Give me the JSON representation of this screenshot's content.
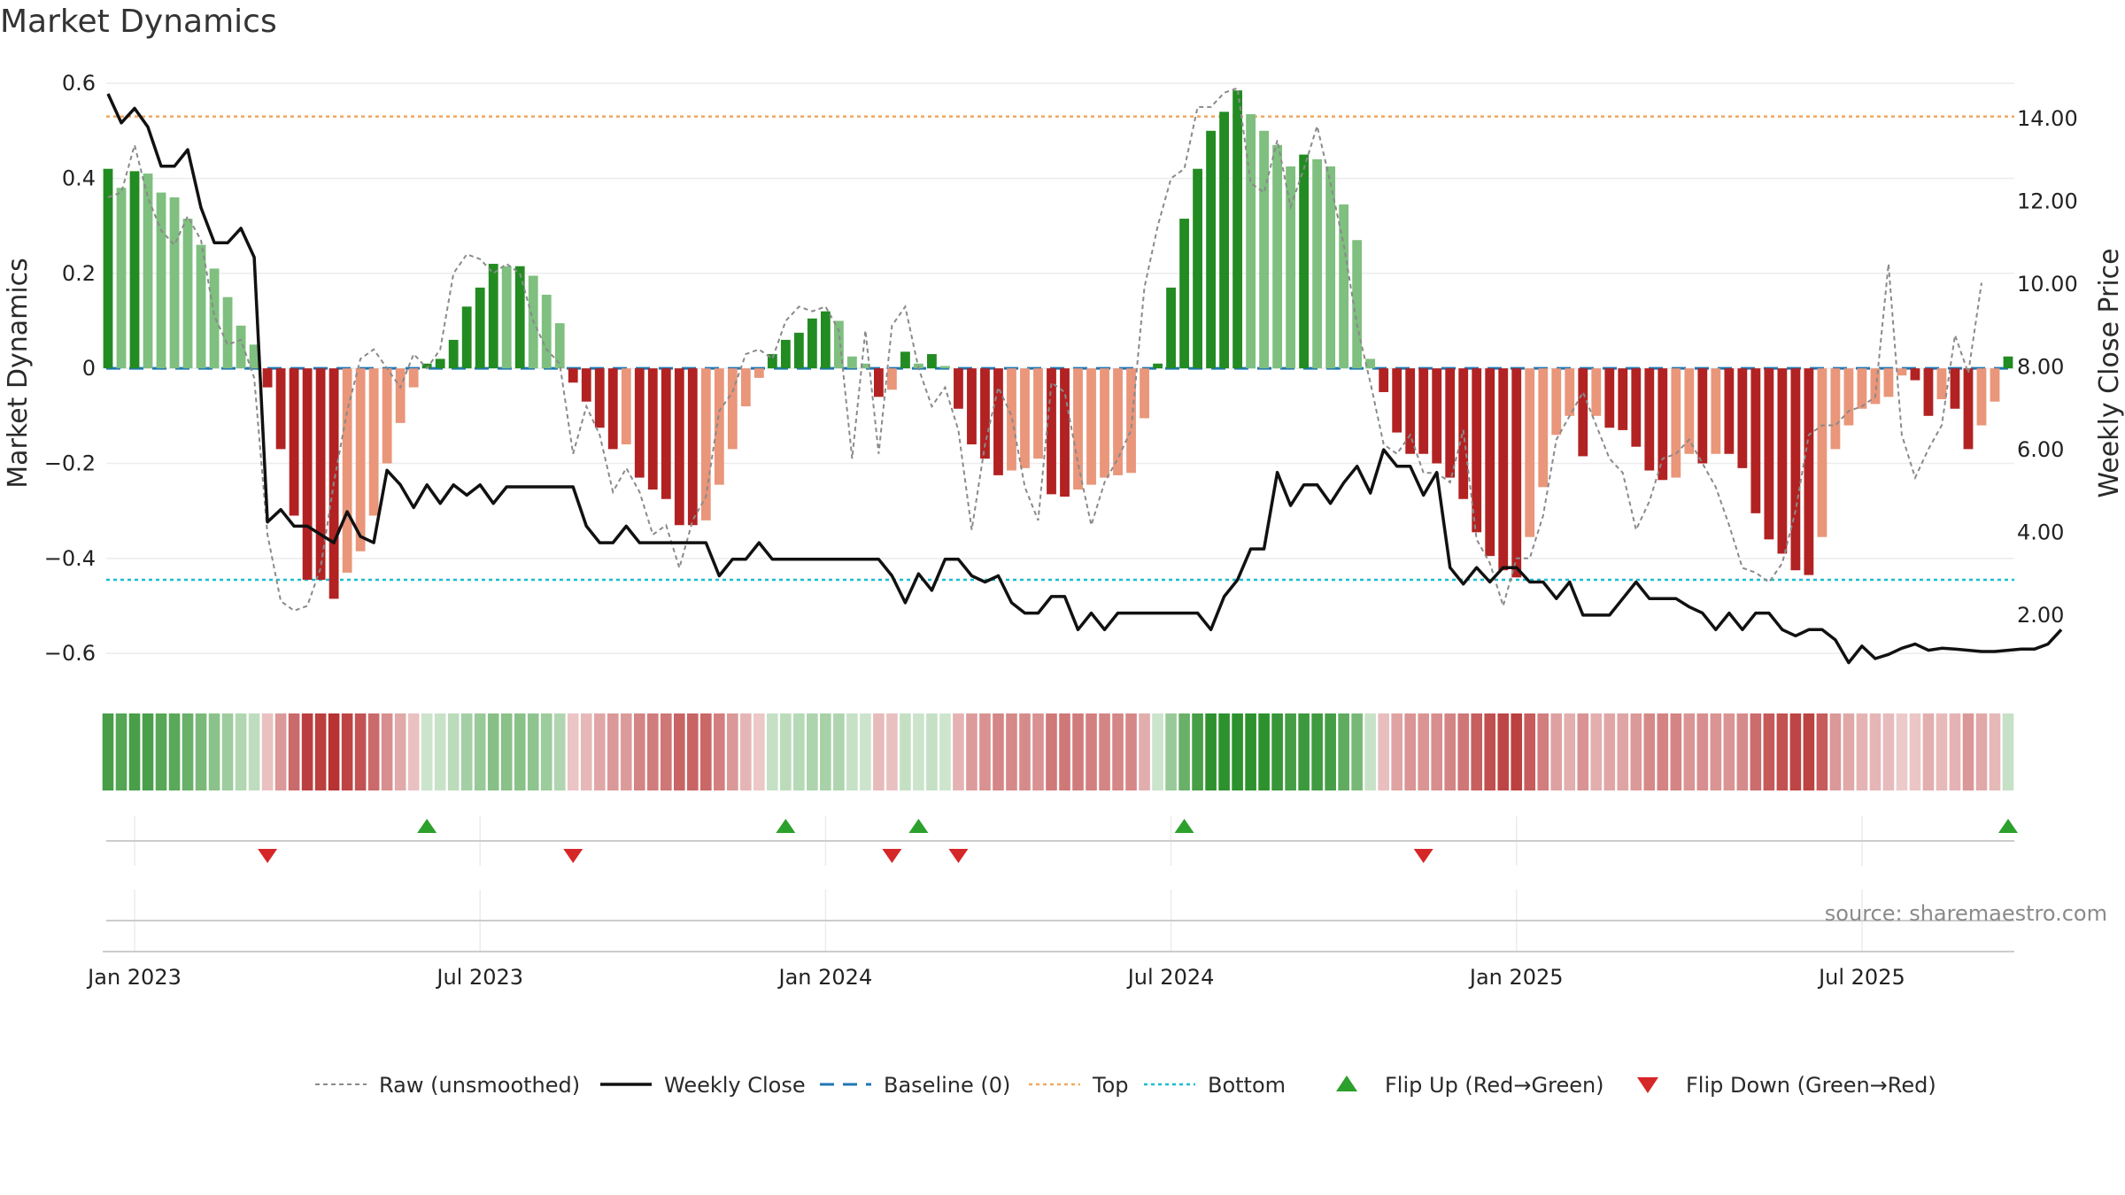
{
  "chart_data": {
    "type": "bar",
    "title": "Market Dynamics",
    "ylabel": "Market Dynamics",
    "y2label": "Weekly Close Price",
    "ylim": [
      -0.65,
      0.63
    ],
    "y2lim": [
      0.5,
      15.2
    ],
    "y_ticks": [
      {
        "v": 0.6,
        "label": "0.6"
      },
      {
        "v": 0.4,
        "label": "0.4"
      },
      {
        "v": 0.2,
        "label": "0.2"
      },
      {
        "v": 0,
        "label": "0"
      },
      {
        "v": -0.2,
        "label": "−0.2"
      },
      {
        "v": -0.4,
        "label": "−0.4"
      },
      {
        "v": -0.6,
        "label": "−0.6"
      }
    ],
    "y2_ticks": [
      {
        "v": 14,
        "label": "14.00"
      },
      {
        "v": 12,
        "label": "12.00"
      },
      {
        "v": 10,
        "label": "10.00"
      },
      {
        "v": 8,
        "label": "8.00"
      },
      {
        "v": 6,
        "label": "6.00"
      },
      {
        "v": 4,
        "label": "4.00"
      },
      {
        "v": 2,
        "label": "2.00"
      }
    ],
    "x_ticks": [
      {
        "w": 2,
        "label": "Jan 2023"
      },
      {
        "w": 28,
        "label": "Jul 2023"
      },
      {
        "w": 54,
        "label": "Jan 2024"
      },
      {
        "w": 80,
        "label": "Jul 2024"
      },
      {
        "w": 106,
        "label": "Jan 2025"
      },
      {
        "w": 132,
        "label": "Jul 2025"
      }
    ],
    "top_level": 0.53,
    "bottom_level": -0.445,
    "baseline": 0,
    "colors": {
      "strong_green": "#228b22",
      "light_green": "#7fbf7f",
      "strong_red": "#b22222",
      "light_red": "#e9967a",
      "raw": "#8a8a8a",
      "close": "#111111",
      "baseline": "#1f77b4",
      "top": "#f0a860",
      "bottom": "#17becf",
      "flip_up": "#2ca02c",
      "flip_down": "#d62728"
    },
    "momentum": [
      0.42,
      0.38,
      0.415,
      0.41,
      0.37,
      0.36,
      0.315,
      0.26,
      0.21,
      0.15,
      0.09,
      0.05,
      -0.04,
      -0.17,
      -0.31,
      -0.445,
      -0.445,
      -0.485,
      -0.43,
      -0.385,
      -0.31,
      -0.2,
      -0.115,
      -0.04,
      0.01,
      0.02,
      0.06,
      0.13,
      0.17,
      0.22,
      0.215,
      0.215,
      0.195,
      0.155,
      0.095,
      -0.03,
      -0.07,
      -0.125,
      -0.17,
      -0.16,
      -0.23,
      -0.255,
      -0.275,
      -0.33,
      -0.33,
      -0.32,
      -0.245,
      -0.17,
      -0.08,
      -0.02,
      0.03,
      0.06,
      0.075,
      0.105,
      0.12,
      0.1,
      0.025,
      0.01,
      -0.06,
      -0.045,
      0.035,
      0.01,
      0.03,
      0.005,
      -0.085,
      -0.16,
      -0.19,
      -0.225,
      -0.215,
      -0.21,
      -0.19,
      -0.265,
      -0.27,
      -0.255,
      -0.245,
      -0.23,
      -0.225,
      -0.22,
      -0.105,
      0.01,
      0.17,
      0.315,
      0.42,
      0.5,
      0.54,
      0.585,
      0.535,
      0.5,
      0.47,
      0.425,
      0.45,
      0.44,
      0.425,
      0.345,
      0.27,
      0.02,
      -0.05,
      -0.135,
      -0.18,
      -0.18,
      -0.2,
      -0.23,
      -0.275,
      -0.345,
      -0.395,
      -0.425,
      -0.44,
      -0.355,
      -0.25,
      -0.14,
      -0.1,
      -0.185,
      -0.1,
      -0.125,
      -0.13,
      -0.165,
      -0.215,
      -0.235,
      -0.23,
      -0.18,
      -0.2,
      -0.18,
      -0.18,
      -0.21,
      -0.305,
      -0.36,
      -0.39,
      -0.425,
      -0.435,
      -0.355,
      -0.17,
      -0.12,
      -0.085,
      -0.075,
      -0.06,
      -0.015,
      -0.025,
      -0.1,
      -0.065,
      -0.085,
      -0.17,
      -0.12,
      -0.07,
      0.025
    ],
    "raw": [
      0.36,
      0.37,
      0.47,
      0.36,
      0.29,
      0.26,
      0.32,
      0.27,
      0.11,
      0.05,
      0.06,
      -0.02,
      -0.35,
      -0.49,
      -0.51,
      -0.5,
      -0.42,
      -0.24,
      -0.09,
      0.02,
      0.04,
      0.0,
      -0.04,
      0.03,
      0.0,
      0.04,
      0.2,
      0.24,
      0.23,
      0.2,
      0.22,
      0.2,
      0.1,
      0.04,
      0.01,
      -0.18,
      -0.08,
      -0.14,
      -0.26,
      -0.21,
      -0.26,
      -0.35,
      -0.33,
      -0.42,
      -0.32,
      -0.27,
      -0.09,
      -0.05,
      0.03,
      0.04,
      0.02,
      0.1,
      0.13,
      0.12,
      0.13,
      0.08,
      -0.19,
      0.08,
      -0.18,
      0.09,
      0.13,
      0.0,
      -0.08,
      -0.04,
      -0.13,
      -0.34,
      -0.16,
      -0.04,
      -0.1,
      -0.25,
      -0.32,
      -0.03,
      -0.05,
      -0.2,
      -0.33,
      -0.24,
      -0.19,
      -0.13,
      0.17,
      0.3,
      0.4,
      0.42,
      0.55,
      0.55,
      0.58,
      0.59,
      0.39,
      0.37,
      0.48,
      0.34,
      0.42,
      0.51,
      0.39,
      0.26,
      0.09,
      -0.03,
      -0.16,
      -0.18,
      -0.14,
      -0.22,
      -0.22,
      -0.24,
      -0.13,
      -0.36,
      -0.41,
      -0.5,
      -0.4,
      -0.4,
      -0.31,
      -0.15,
      -0.1,
      -0.05,
      -0.12,
      -0.19,
      -0.22,
      -0.34,
      -0.28,
      -0.19,
      -0.18,
      -0.15,
      -0.2,
      -0.25,
      -0.33,
      -0.42,
      -0.43,
      -0.45,
      -0.41,
      -0.3,
      -0.14,
      -0.12,
      -0.12,
      -0.09,
      -0.08,
      -0.06,
      0.22,
      -0.14,
      -0.23,
      -0.17,
      -0.12,
      0.07,
      -0.01,
      0.18
    ],
    "close": [
      14.6,
      13.9,
      14.25,
      13.8,
      12.85,
      12.85,
      13.25,
      11.85,
      11.0,
      11.0,
      11.35,
      10.65,
      4.25,
      4.55,
      4.15,
      4.15,
      3.95,
      3.75,
      4.5,
      3.9,
      3.75,
      5.5,
      5.15,
      4.6,
      5.15,
      4.7,
      5.15,
      4.9,
      5.15,
      4.7,
      5.1,
      5.1,
      5.1,
      5.1,
      5.1,
      5.1,
      4.15,
      3.75,
      3.75,
      4.15,
      3.75,
      3.75,
      3.75,
      3.75,
      3.75,
      3.75,
      2.95,
      3.35,
      3.35,
      3.75,
      3.35,
      3.35,
      3.35,
      3.35,
      3.35,
      3.35,
      3.35,
      3.35,
      3.35,
      2.95,
      2.3,
      3.0,
      2.6,
      3.35,
      3.35,
      2.95,
      2.8,
      2.95,
      2.3,
      2.05,
      2.05,
      2.45,
      2.45,
      1.65,
      2.05,
      1.65,
      2.05,
      2.05,
      2.05,
      2.05,
      2.05,
      2.05,
      2.05,
      1.65,
      2.45,
      2.85,
      3.6,
      3.6,
      5.45,
      4.65,
      5.15,
      5.15,
      4.7,
      5.2,
      5.6,
      4.95,
      6.0,
      5.6,
      5.6,
      4.9,
      5.45,
      3.15,
      2.75,
      3.15,
      2.8,
      3.15,
      3.15,
      2.8,
      2.8,
      2.4,
      2.8,
      2.0,
      2.0,
      2.0,
      2.4,
      2.8,
      2.4,
      2.4,
      2.4,
      2.2,
      2.05,
      1.65,
      2.05,
      1.65,
      2.05,
      2.05,
      1.65,
      1.5,
      1.65,
      1.65,
      1.4,
      0.85,
      1.25,
      0.95,
      1.05,
      1.2,
      1.3,
      1.15,
      1.2,
      1.18,
      1.15,
      1.12,
      1.12,
      1.15,
      1.18,
      1.18,
      1.3,
      1.65
    ],
    "flips_up": [
      24,
      51,
      61,
      81,
      143
    ],
    "flips_down": [
      12,
      35,
      59,
      64,
      99
    ],
    "legend": [
      {
        "key": "raw",
        "label": "Raw (unsmoothed)"
      },
      {
        "key": "close",
        "label": "Weekly Close"
      },
      {
        "key": "baseline",
        "label": "Baseline (0)"
      },
      {
        "key": "top",
        "label": "Top"
      },
      {
        "key": "bottom",
        "label": "Bottom"
      },
      {
        "key": "flip_up",
        "label": "Flip Up (Red→Green)"
      },
      {
        "key": "flip_down",
        "label": "Flip Down (Green→Red)"
      }
    ],
    "source": "source: sharemaestro.com"
  }
}
